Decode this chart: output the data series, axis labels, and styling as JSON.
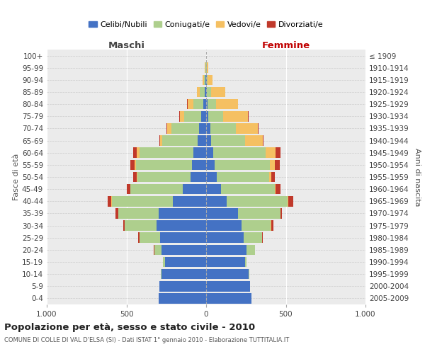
{
  "age_groups": [
    "0-4",
    "5-9",
    "10-14",
    "15-19",
    "20-24",
    "25-29",
    "30-34",
    "35-39",
    "40-44",
    "45-49",
    "50-54",
    "55-59",
    "60-64",
    "65-69",
    "70-74",
    "75-79",
    "80-84",
    "85-89",
    "90-94",
    "95-99",
    "100+"
  ],
  "birth_years": [
    "2005-2009",
    "2000-2004",
    "1995-1999",
    "1990-1994",
    "1985-1989",
    "1980-1984",
    "1975-1979",
    "1970-1974",
    "1965-1969",
    "1960-1964",
    "1955-1959",
    "1950-1954",
    "1945-1949",
    "1940-1944",
    "1935-1939",
    "1930-1934",
    "1925-1929",
    "1920-1924",
    "1915-1919",
    "1910-1914",
    "≤ 1909"
  ],
  "maschi": {
    "celibi": [
      300,
      295,
      280,
      260,
      280,
      290,
      310,
      300,
      210,
      145,
      100,
      90,
      80,
      55,
      45,
      30,
      20,
      10,
      5,
      2,
      0
    ],
    "coniugati": [
      0,
      0,
      5,
      10,
      45,
      130,
      200,
      250,
      380,
      330,
      330,
      350,
      340,
      220,
      175,
      110,
      60,
      30,
      10,
      3,
      0
    ],
    "vedovi": [
      0,
      0,
      0,
      0,
      0,
      0,
      0,
      0,
      5,
      0,
      5,
      10,
      15,
      15,
      25,
      25,
      35,
      20,
      8,
      3,
      0
    ],
    "divorziati": [
      0,
      0,
      0,
      0,
      5,
      5,
      10,
      20,
      25,
      25,
      25,
      25,
      25,
      5,
      5,
      5,
      5,
      0,
      0,
      0,
      0
    ]
  },
  "femmine": {
    "nubili": [
      285,
      275,
      265,
      245,
      255,
      235,
      220,
      200,
      130,
      95,
      65,
      55,
      45,
      30,
      25,
      15,
      10,
      5,
      3,
      2,
      0
    ],
    "coniugate": [
      0,
      0,
      5,
      10,
      50,
      115,
      185,
      265,
      380,
      335,
      330,
      345,
      330,
      215,
      160,
      90,
      50,
      25,
      5,
      3,
      0
    ],
    "vedove": [
      0,
      0,
      0,
      0,
      0,
      0,
      5,
      0,
      5,
      5,
      15,
      30,
      60,
      110,
      140,
      155,
      140,
      90,
      30,
      10,
      0
    ],
    "divorziate": [
      0,
      0,
      0,
      0,
      0,
      5,
      10,
      10,
      30,
      30,
      20,
      30,
      30,
      5,
      5,
      5,
      0,
      0,
      0,
      0,
      0
    ]
  },
  "colors": {
    "celibi": "#4472C4",
    "coniugati": "#AECF8D",
    "vedovi": "#F5C062",
    "divorziati": "#C0392B"
  },
  "legend_labels": [
    "Celibi/Nubili",
    "Coniugati/e",
    "Vedovi/e",
    "Divorziati/e"
  ],
  "title": "Popolazione per età, sesso e stato civile - 2010",
  "subtitle": "COMUNE DI COLLE DI VAL D'ELSA (SI) - Dati ISTAT 1° gennaio 2010 - Elaborazione TUTTITALIA.IT",
  "ylabel_left": "Fasce di età",
  "ylabel_right": "Anni di nascita",
  "xlabel_maschi": "Maschi",
  "xlabel_femmine": "Femmine",
  "xlim": 1000
}
